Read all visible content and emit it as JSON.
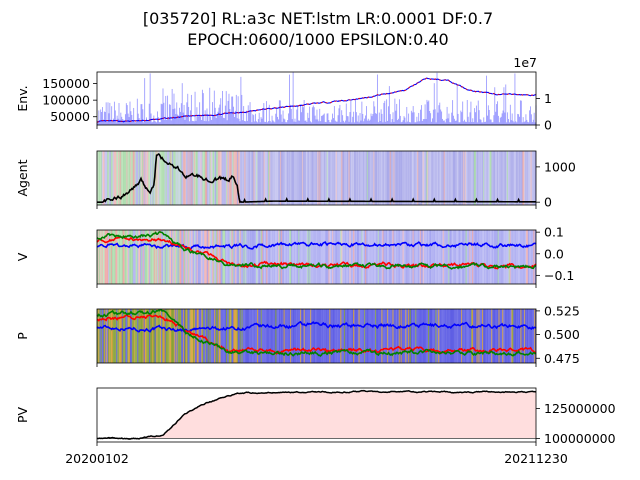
{
  "figure": {
    "title_line1": "[035720] RL:a3c NET:lstm LR:0.0001 DF:0.7",
    "title_line2": "EPOCH:0600/1000 EPSILON:0.40"
  },
  "chart_data": [
    {
      "name": "env",
      "type": "line",
      "ylabel": "Env.",
      "ylim": [
        25000,
        185000
      ],
      "yticks": [
        50000,
        100000,
        150000
      ],
      "ytick_labels": [
        "50000",
        "100000",
        "150000"
      ],
      "y2lim": [
        0,
        2
      ],
      "y2ticks": [
        0,
        1
      ],
      "y2tick_labels": [
        "0",
        "1"
      ],
      "y2_offset_label": "1e7",
      "x_range": [
        "20200102",
        "20211230"
      ],
      "price_keypoints": [
        [
          0,
          35000
        ],
        [
          0.1,
          37000
        ],
        [
          0.2,
          50000
        ],
        [
          0.3,
          60000
        ],
        [
          0.4,
          75000
        ],
        [
          0.5,
          90000
        ],
        [
          0.6,
          105000
        ],
        [
          0.7,
          130000
        ],
        [
          0.75,
          165000
        ],
        [
          0.8,
          160000
        ],
        [
          0.85,
          130000
        ],
        [
          0.9,
          118000
        ],
        [
          1.0,
          115000
        ]
      ],
      "series": [
        {
          "name": "",
          "color": "#ff0000",
          "kind": "line"
        },
        {
          "name": "",
          "color": "#0000ff",
          "kind": "line"
        },
        {
          "name": "",
          "color": "#0000ff",
          "kind": "volume-bars"
        }
      ]
    },
    {
      "name": "agent",
      "type": "line",
      "ylabel": "Agent",
      "ylim": [
        -80,
        1450
      ],
      "yticks": [
        0,
        1000
      ],
      "ytick_labels": [
        "0",
        "1000"
      ],
      "keypoints": [
        [
          0,
          0
        ],
        [
          0.05,
          100
        ],
        [
          0.1,
          600
        ],
        [
          0.12,
          300
        ],
        [
          0.13,
          500
        ],
        [
          0.135,
          1350
        ],
        [
          0.16,
          1150
        ],
        [
          0.2,
          800
        ],
        [
          0.25,
          700
        ],
        [
          0.3,
          600
        ],
        [
          0.31,
          750
        ],
        [
          0.32,
          450
        ],
        [
          0.325,
          0
        ],
        [
          0.4,
          30
        ],
        [
          1.0,
          10
        ]
      ],
      "color": "#000000",
      "background_bands": [
        "#cc3333",
        "#3333cc",
        "#33aa33"
      ]
    },
    {
      "name": "value",
      "type": "line",
      "ylabel": "V",
      "ylim": [
        -0.14,
        0.11
      ],
      "yticks": [
        -0.1,
        0.0,
        0.1
      ],
      "ytick_labels": [
        "−0.1",
        "0.0",
        "0.1"
      ],
      "series": [
        {
          "name": "",
          "color": "#0000ff",
          "keypoints": [
            [
              0,
              0.04
            ],
            [
              0.2,
              0.03
            ],
            [
              0.5,
              0.045
            ],
            [
              1.0,
              0.04
            ]
          ]
        },
        {
          "name": "",
          "color": "#ff0000",
          "keypoints": [
            [
              0,
              0.06
            ],
            [
              0.15,
              0.07
            ],
            [
              0.2,
              0.02
            ],
            [
              0.25,
              0.0
            ],
            [
              0.3,
              -0.05
            ],
            [
              1.0,
              -0.055
            ]
          ]
        },
        {
          "name": "",
          "color": "#008000",
          "keypoints": [
            [
              0,
              0.08
            ],
            [
              0.15,
              0.09
            ],
            [
              0.2,
              0.015
            ],
            [
              0.25,
              -0.005
            ],
            [
              0.3,
              -0.055
            ],
            [
              1.0,
              -0.06
            ]
          ]
        }
      ]
    },
    {
      "name": "policy",
      "type": "line",
      "ylabel": "P",
      "ylim": [
        0.47,
        0.527
      ],
      "yticks": [
        0.475,
        0.5,
        0.525
      ],
      "ytick_labels": [
        "0.475",
        "0.500",
        "0.525"
      ],
      "series": [
        {
          "name": "",
          "color": "#0000ff",
          "keypoints": [
            [
              0,
              0.508
            ],
            [
              0.2,
              0.505
            ],
            [
              0.5,
              0.51
            ],
            [
              1.0,
              0.509
            ]
          ]
        },
        {
          "name": "",
          "color": "#ff0000",
          "keypoints": [
            [
              0,
              0.517
            ],
            [
              0.15,
              0.52
            ],
            [
              0.2,
              0.505
            ],
            [
              0.3,
              0.483
            ],
            [
              1.0,
              0.483
            ]
          ]
        },
        {
          "name": "",
          "color": "#008000",
          "keypoints": [
            [
              0,
              0.522
            ],
            [
              0.15,
              0.525
            ],
            [
              0.2,
              0.503
            ],
            [
              0.3,
              0.481
            ],
            [
              1.0,
              0.481
            ]
          ]
        }
      ]
    },
    {
      "name": "pv",
      "type": "area",
      "ylabel": "PV",
      "ylim": [
        97000000,
        142000000
      ],
      "yticks": [
        100000000,
        125000000
      ],
      "ytick_labels": [
        "100000000",
        "125000000"
      ],
      "baseline": 100000000,
      "keypoints": [
        [
          0,
          100000000
        ],
        [
          0.1,
          100000000
        ],
        [
          0.15,
          103000000
        ],
        [
          0.2,
          120000000
        ],
        [
          0.25,
          130000000
        ],
        [
          0.3,
          135000000
        ],
        [
          0.32,
          138000000
        ],
        [
          0.6,
          139000000
        ],
        [
          1.0,
          138500000
        ]
      ],
      "color": "#000000",
      "fill": "#ffdede",
      "x_start_label": "20200102",
      "x_end_label": "20211230"
    }
  ]
}
